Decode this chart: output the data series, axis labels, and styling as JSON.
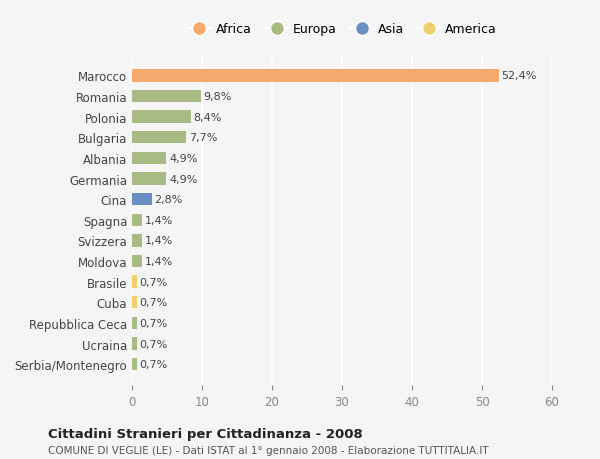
{
  "categories": [
    "Marocco",
    "Romania",
    "Polonia",
    "Bulgaria",
    "Albania",
    "Germania",
    "Cina",
    "Spagna",
    "Svizzera",
    "Moldova",
    "Brasile",
    "Cuba",
    "Repubblica Ceca",
    "Ucraina",
    "Serbia/Montenegro"
  ],
  "values": [
    52.4,
    9.8,
    8.4,
    7.7,
    4.9,
    4.9,
    2.8,
    1.4,
    1.4,
    1.4,
    0.7,
    0.7,
    0.7,
    0.7,
    0.7
  ],
  "continents": [
    "Africa",
    "Europa",
    "Europa",
    "Europa",
    "Europa",
    "Europa",
    "Asia",
    "Europa",
    "Europa",
    "Europa",
    "America",
    "America",
    "Europa",
    "Europa",
    "Europa"
  ],
  "colors": {
    "Africa": "#F4A96D",
    "Europa": "#A8BB85",
    "Asia": "#6B8FC4",
    "America": "#F0CF6E"
  },
  "labels": [
    "52,4%",
    "9,8%",
    "8,4%",
    "7,7%",
    "4,9%",
    "4,9%",
    "2,8%",
    "1,4%",
    "1,4%",
    "1,4%",
    "0,7%",
    "0,7%",
    "0,7%",
    "0,7%",
    "0,7%"
  ],
  "title": "Cittadini Stranieri per Cittadinanza - 2008",
  "subtitle": "COMUNE DI VEGLIE (LE) - Dati ISTAT al 1° gennaio 2008 - Elaborazione TUTTITALIA.IT",
  "xlim": [
    0,
    60
  ],
  "xticks": [
    0,
    10,
    20,
    30,
    40,
    50,
    60
  ],
  "background_color": "#f5f5f5",
  "legend_entries": [
    "Africa",
    "Europa",
    "Asia",
    "America"
  ]
}
